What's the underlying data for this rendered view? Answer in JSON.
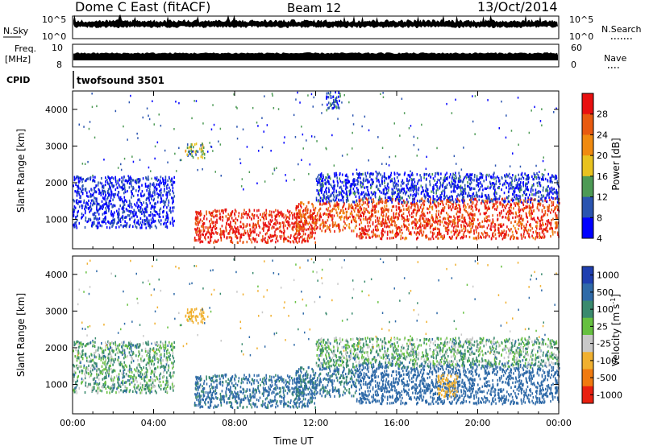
{
  "header": {
    "title": "Dome C East (fitACF)",
    "beam": "Beam 12",
    "date": "13/Oct/2014"
  },
  "noise_panel": {
    "left_label": "N.Sky",
    "right_label": "N.Search",
    "left_ticks": [
      "10^5",
      "10^0"
    ],
    "right_ticks": [
      "10^5",
      "10^0"
    ]
  },
  "freq_panel": {
    "left_label_1": "Freq.",
    "left_label_2": "[MHz]",
    "left_ticks": [
      "10",
      "8"
    ],
    "right_label": "Nave",
    "right_ticks": [
      "60",
      "0"
    ]
  },
  "cpid": {
    "label": "CPID",
    "program": "twofsound 3501"
  },
  "x_axis": {
    "label": "Time UT",
    "ticks": [
      "00:00",
      "04:00",
      "08:00",
      "12:00",
      "16:00",
      "20:00",
      "00:00"
    ]
  },
  "y_axis": {
    "label": "Slant Range [km]",
    "ticks": [
      "1000",
      "2000",
      "3000",
      "4000"
    ]
  },
  "power_scale": {
    "title": "Power [dB]",
    "labels": [
      "4",
      "8",
      "12",
      "16",
      "20",
      "24",
      "28"
    ],
    "colors": [
      "#0000ff",
      "#2a54b0",
      "#4d9a55",
      "#e8c21f",
      "#f08a10",
      "#e85a10",
      "#e81010"
    ]
  },
  "velocity_scale": {
    "title": "Velocity [m s^-1]",
    "title_main": "Velocity [m s",
    "title_sup": "-1",
    "title_end": "]",
    "labels": [
      "1000",
      "500",
      "100",
      "25",
      "-25",
      "-100",
      "-500",
      "-1000"
    ],
    "colors": [
      "#1f3fb0",
      "#2f6aa8",
      "#3a8a6e",
      "#66c040",
      "#c8c8c8",
      "#f0b030",
      "#f07a10",
      "#e82010"
    ]
  },
  "chart_data": [
    {
      "type": "heatmap",
      "title": "Power [dB]",
      "xlabel": "Time UT",
      "ylabel": "Slant Range [km]",
      "xlim": [
        0,
        24
      ],
      "ylim": [
        200,
        4500
      ],
      "zlim": [
        0,
        32
      ],
      "structure": [
        {
          "hours": [
            0,
            5
          ],
          "range_km": [
            800,
            2200
          ],
          "power_db": 5
        },
        {
          "hours": [
            5.5,
            6.5
          ],
          "range_km": [
            2700,
            3100
          ],
          "power_db": 14
        },
        {
          "hours": [
            6,
            12
          ],
          "range_km": [
            400,
            1300
          ],
          "power_db": 28
        },
        {
          "hours": [
            11,
            14
          ],
          "range_km": [
            700,
            1500
          ],
          "power_db": 24
        },
        {
          "hours": [
            14,
            24
          ],
          "range_km": [
            500,
            1600
          ],
          "power_db": 26
        },
        {
          "hours": [
            12,
            24
          ],
          "range_km": [
            1500,
            2300
          ],
          "power_db": 6
        },
        {
          "hours": [
            12.5,
            13.2
          ],
          "range_km": [
            4000,
            4500
          ],
          "power_db": 6
        }
      ]
    },
    {
      "type": "heatmap",
      "title": "Velocity [m s^-1]",
      "xlabel": "Time UT",
      "ylabel": "Slant Range [km]",
      "xlim": [
        0,
        24
      ],
      "ylim": [
        200,
        4500
      ],
      "zlim": [
        -1000,
        1000
      ],
      "structure": [
        {
          "hours": [
            0,
            5
          ],
          "range_km": [
            800,
            2200
          ],
          "velocity": 25
        },
        {
          "hours": [
            5.5,
            6.5
          ],
          "range_km": [
            2700,
            3100
          ],
          "velocity": -300
        },
        {
          "hours": [
            6,
            12
          ],
          "range_km": [
            400,
            1300
          ],
          "velocity": 150
        },
        {
          "hours": [
            11,
            14
          ],
          "range_km": [
            700,
            1500
          ],
          "velocity": 120
        },
        {
          "hours": [
            14,
            24
          ],
          "range_km": [
            500,
            1600
          ],
          "velocity": 200
        },
        {
          "hours": [
            18,
            19
          ],
          "range_km": [
            700,
            1300
          ],
          "velocity": -300
        },
        {
          "hours": [
            12,
            24
          ],
          "range_km": [
            1500,
            2300
          ],
          "velocity": 20
        }
      ]
    }
  ]
}
